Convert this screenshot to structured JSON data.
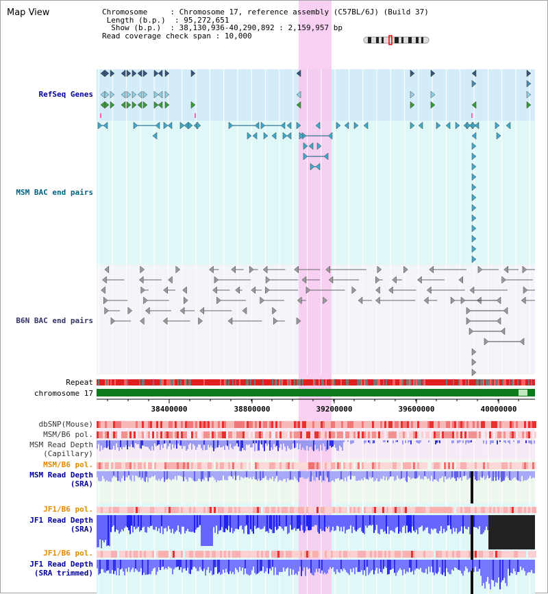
{
  "view_title": "Map View",
  "info": {
    "chromosome_key": "Chromosome",
    "chromosome_value": "Chromosome 17, reference assembly (C57BL/6J) (Build 37)",
    "length_key": "Length (b.p.)",
    "length_value": "95,272,651",
    "show_key": "Show (b.p.)",
    "show_value": "38,130,936-40,290,892 : 2,159,957 bp",
    "coverage_key": "Read coverage check span",
    "coverage_value": "10,000"
  },
  "tracks": {
    "refseq": "RefSeq Genes",
    "msm_bac": "MSM BAC end pairs",
    "b6n_bac": "B6N BAC end pairs",
    "repeat": "Repeat",
    "chromosome": "chromosome 17",
    "dbsnp": "dbSNP(Mouse)",
    "msm_b6_pol": "MSM/B6 pol.",
    "msm_depth_cap_1": "MSM Read Depth",
    "msm_depth_cap_2": "(Capillary)",
    "msm_b6_pol_2": "MSM/B6 pol.",
    "msm_depth_sra_1": "MSM Read Depth",
    "msm_depth_sra_2": "(SRA)",
    "jf1_b6_pol": "JF1/B6 pol.",
    "jf1_depth_sra_1": "JF1 Read Depth",
    "jf1_depth_sra_2": "(SRA)",
    "jf1_b6_pol_2": "JF1/B6 pol.",
    "jf1_depth_trim_1": "JF1 Read Depth",
    "jf1_depth_trim_2": "(SRA trimmed)"
  },
  "axis_ticks": [
    "38400000",
    "38800000",
    "39200000",
    "39600000",
    "40000000"
  ],
  "colors": {
    "refseq_label": "#000099",
    "msm_bac_label": "#006080",
    "b6n_bac_label": "#333366",
    "orange_label": "#e08a00",
    "blue_label": "#000099",
    "highlight": "#f7c8ee",
    "chrom_green": "#0a7a1a"
  }
}
